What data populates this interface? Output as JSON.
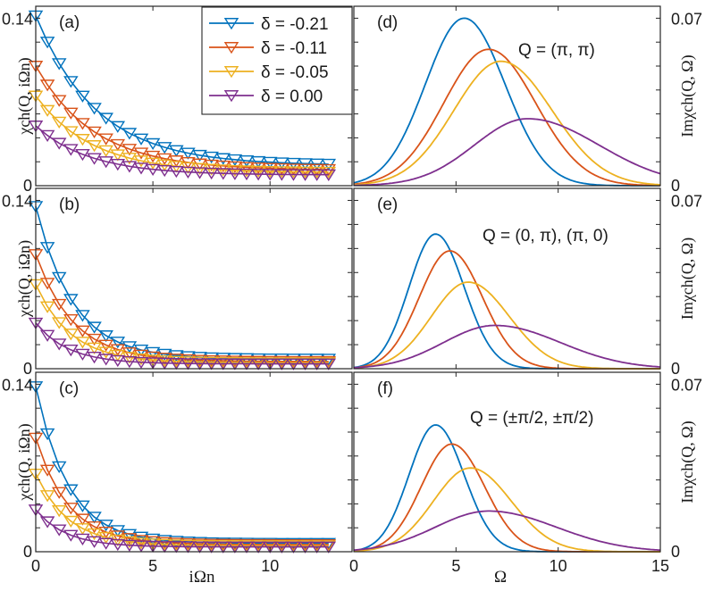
{
  "colors": {
    "series": [
      "#0072BD",
      "#D95319",
      "#EDB120",
      "#7E2F8E"
    ]
  },
  "legend": {
    "entries": [
      "δ = -0.21",
      "δ = -0.11",
      "δ = -0.05",
      "δ = 0.00"
    ],
    "placement": "top-left panel, upper right"
  },
  "chart_data": [
    {
      "type": "line",
      "panel_label": "(a)",
      "marker": "down-triangle",
      "xlabel": "",
      "ylabel": "χch(Q, iΩn)",
      "xlim": [
        0,
        13.5
      ],
      "ylim": [
        0,
        0.15
      ],
      "yticks": [
        "0",
        "0.14"
      ],
      "x": [
        0,
        0.5,
        1,
        1.5,
        2,
        2.5,
        3,
        3.5,
        4,
        4.5,
        5,
        5.5,
        6,
        6.5,
        7,
        7.5,
        8,
        8.5,
        9,
        9.5,
        10,
        10.5,
        11,
        11.5,
        12,
        12.5
      ],
      "series": [
        {
          "name": "δ = -0.21",
          "y0": 0.142,
          "yend": 0.017,
          "decay": 2.6
        },
        {
          "name": "δ = -0.11",
          "y0": 0.1,
          "yend": 0.013,
          "decay": 2.5
        },
        {
          "name": "δ = -0.05",
          "y0": 0.075,
          "yend": 0.011,
          "decay": 2.4
        },
        {
          "name": "δ = 0.00",
          "y0": 0.05,
          "yend": 0.009,
          "decay": 2.3
        }
      ]
    },
    {
      "type": "line",
      "panel_label": "(b)",
      "marker": "down-triangle",
      "xlabel": "",
      "ylabel": "χch(Q, iΩn)",
      "xlim": [
        0,
        13.5
      ],
      "ylim": [
        0,
        0.15
      ],
      "yticks": [
        "0",
        "0.14"
      ],
      "x": [
        0,
        0.5,
        1,
        1.5,
        2,
        2.5,
        3,
        3.5,
        4,
        4.5,
        5,
        5.5,
        6,
        6.5,
        7,
        7.5,
        8,
        8.5,
        9,
        9.5,
        10,
        10.5,
        11,
        11.5,
        12,
        12.5
      ],
      "series": [
        {
          "name": "δ = -0.21",
          "y0": 0.135,
          "yend": 0.008,
          "decay": 1.6
        },
        {
          "name": "δ = -0.11",
          "y0": 0.095,
          "yend": 0.006,
          "decay": 1.6
        },
        {
          "name": "δ = -0.05",
          "y0": 0.07,
          "yend": 0.005,
          "decay": 1.5
        },
        {
          "name": "δ = 0.00",
          "y0": 0.038,
          "yend": 0.004,
          "decay": 1.4
        }
      ]
    },
    {
      "type": "line",
      "panel_label": "(c)",
      "marker": "down-triangle",
      "xlabel": "iΩn",
      "ylabel": "χch(Q, iΩn)",
      "xlim": [
        0,
        13.5
      ],
      "ylim": [
        0,
        0.15
      ],
      "yticks": [
        "0",
        "0.14"
      ],
      "xticks": [
        "0",
        "5",
        "10"
      ],
      "x": [
        0,
        0.5,
        1,
        1.5,
        2,
        2.5,
        3,
        3.5,
        4,
        4.5,
        5,
        5.5,
        6,
        6.5,
        7,
        7.5,
        8,
        8.5,
        9,
        9.5,
        10,
        10.5,
        11,
        11.5,
        12,
        12.5
      ],
      "series": [
        {
          "name": "δ = -0.21",
          "y0": 0.138,
          "yend": 0.007,
          "decay": 1.4
        },
        {
          "name": "δ = -0.11",
          "y0": 0.095,
          "yend": 0.006,
          "decay": 1.4
        },
        {
          "name": "δ = -0.05",
          "y0": 0.065,
          "yend": 0.005,
          "decay": 1.4
        },
        {
          "name": "δ = 0.00",
          "y0": 0.035,
          "yend": 0.004,
          "decay": 1.3
        }
      ]
    },
    {
      "type": "line",
      "panel_label": "(d)",
      "annotation": "Q = (π, π)",
      "xlabel": "",
      "ylabel": "Imχch(Q, Ω)",
      "xlim": [
        0,
        15
      ],
      "ylim": [
        0,
        0.075
      ],
      "yticks": [
        "0",
        "0.07"
      ],
      "series": [
        {
          "name": "δ = -0.21",
          "peak_x": 5.4,
          "peak_y": 0.07,
          "sigma_left": 1.9,
          "sigma_right": 2.0
        },
        {
          "name": "δ = -0.11",
          "peak_x": 6.6,
          "peak_y": 0.057,
          "sigma_left": 2.2,
          "sigma_right": 2.3
        },
        {
          "name": "δ = -0.05",
          "peak_x": 7.2,
          "peak_y": 0.052,
          "sigma_left": 2.3,
          "sigma_right": 2.5
        },
        {
          "name": "δ = 0.00",
          "peak_x": 8.5,
          "peak_y": 0.028,
          "sigma_left": 2.6,
          "sigma_right": 3.5
        }
      ]
    },
    {
      "type": "line",
      "panel_label": "(e)",
      "annotation": "Q = (0, π), (π, 0)",
      "xlabel": "",
      "ylabel": "Imχch(Q, Ω)",
      "xlim": [
        0,
        15
      ],
      "ylim": [
        0,
        0.075
      ],
      "yticks": [
        "0",
        "0.07"
      ],
      "series": [
        {
          "name": "δ = -0.21",
          "peak_x": 4.0,
          "peak_y": 0.056,
          "sigma_left": 1.3,
          "sigma_right": 1.4
        },
        {
          "name": "δ = -0.11",
          "peak_x": 4.7,
          "peak_y": 0.049,
          "sigma_left": 1.5,
          "sigma_right": 1.6
        },
        {
          "name": "δ = -0.05",
          "peak_x": 5.6,
          "peak_y": 0.036,
          "sigma_left": 1.8,
          "sigma_right": 2.0
        },
        {
          "name": "δ = 0.00",
          "peak_x": 6.9,
          "peak_y": 0.018,
          "sigma_left": 2.5,
          "sigma_right": 3.2
        }
      ]
    },
    {
      "type": "line",
      "panel_label": "(f)",
      "annotation": "Q = (±π/2, ±π/2)",
      "xlabel": "Ω",
      "ylabel": "Imχch(Q, Ω)",
      "xlim": [
        0,
        15
      ],
      "ylim": [
        0,
        0.075
      ],
      "yticks": [
        "0",
        "0.07"
      ],
      "xticks": [
        "0",
        "5",
        "10",
        "15"
      ],
      "series": [
        {
          "name": "δ = -0.21",
          "peak_x": 4.0,
          "peak_y": 0.053,
          "sigma_left": 1.3,
          "sigma_right": 1.4
        },
        {
          "name": "δ = -0.11",
          "peak_x": 4.8,
          "peak_y": 0.045,
          "sigma_left": 1.5,
          "sigma_right": 1.6
        },
        {
          "name": "δ = -0.05",
          "peak_x": 5.7,
          "peak_y": 0.035,
          "sigma_left": 1.8,
          "sigma_right": 2.0
        },
        {
          "name": "δ = 0.00",
          "peak_x": 6.6,
          "peak_y": 0.017,
          "sigma_left": 2.6,
          "sigma_right": 3.3
        }
      ]
    }
  ]
}
